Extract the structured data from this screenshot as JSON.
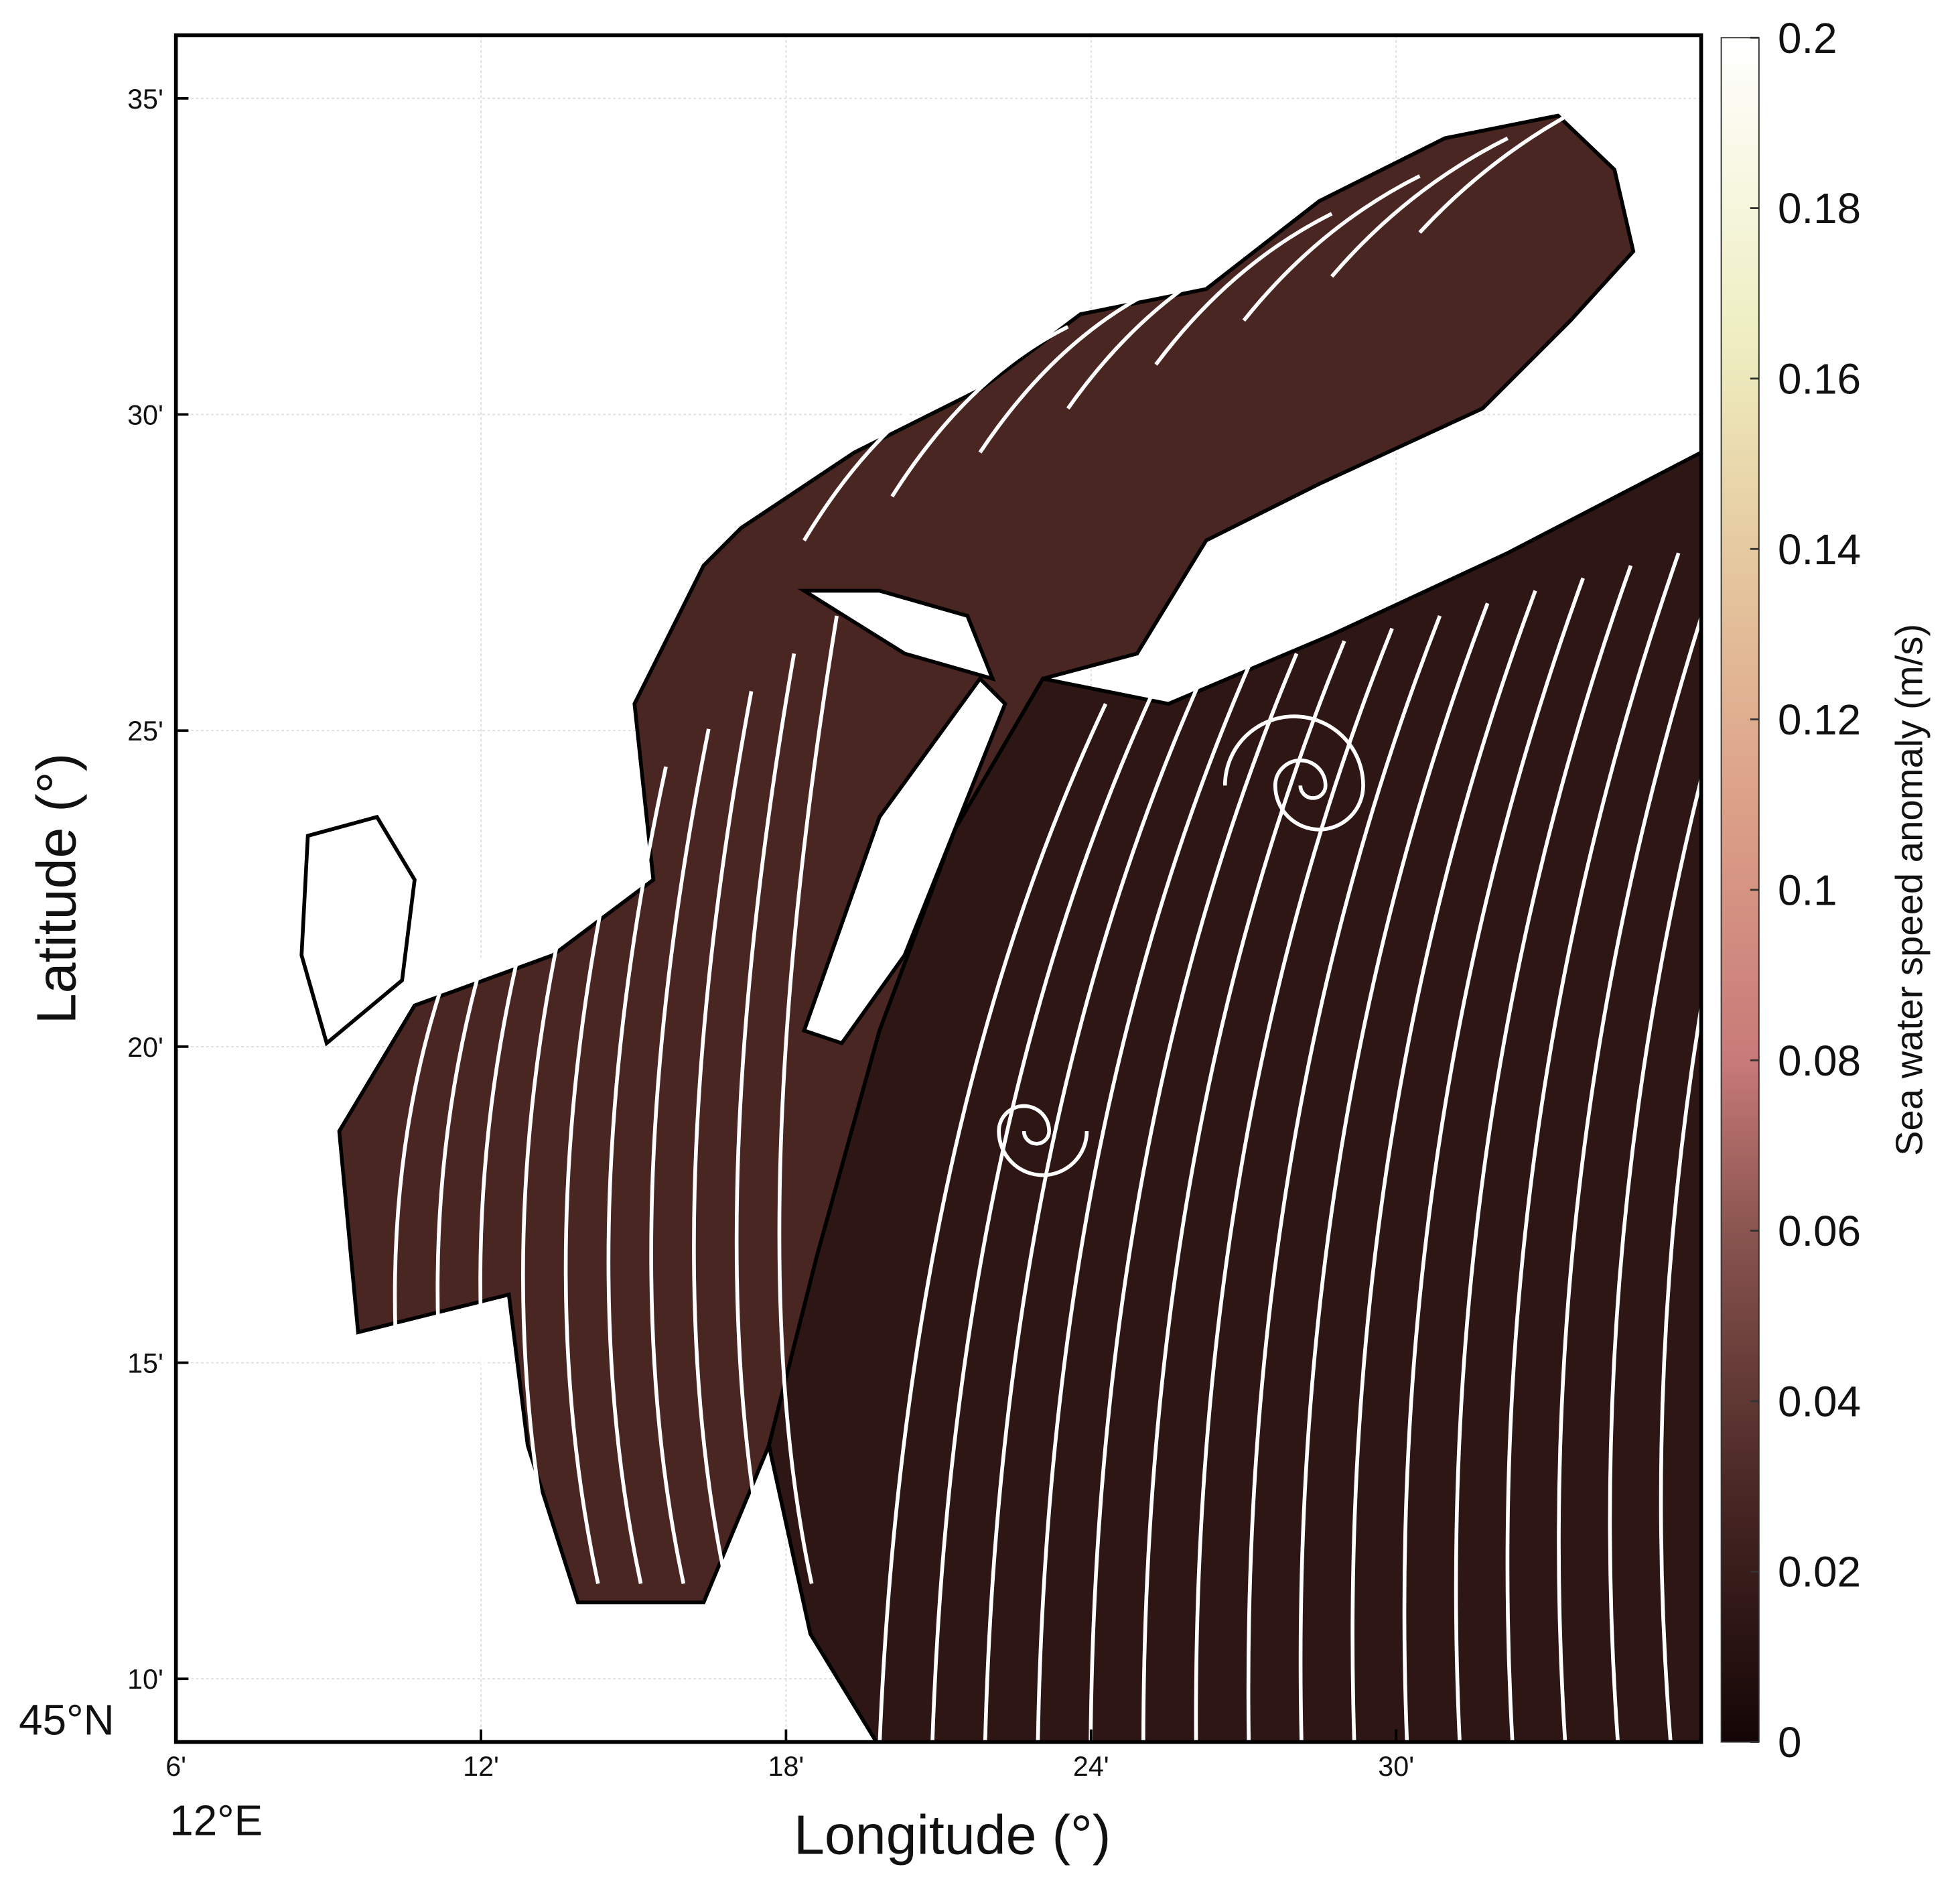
{
  "map": {
    "xlabel": "Longitude (°)",
    "ylabel": "Latitude (°)",
    "xlim": [
      6,
      36
    ],
    "xticks": [
      {
        "value": 6,
        "label": "6'"
      },
      {
        "value": 12,
        "label": "12'"
      },
      {
        "value": 18,
        "label": "18'"
      },
      {
        "value": 24,
        "label": "24'"
      },
      {
        "value": 30,
        "label": "30'"
      }
    ],
    "x_origin_label": "12°E",
    "ylim": [
      9,
      36
    ],
    "yticks": [
      {
        "value": 10,
        "label": "10'"
      },
      {
        "value": 15,
        "label": "15'"
      },
      {
        "value": 20,
        "label": "20'"
      },
      {
        "value": 25,
        "label": "25'"
      },
      {
        "value": 30,
        "label": "30'"
      },
      {
        "value": 35,
        "label": "35'"
      }
    ],
    "y_origin_label": "45°N",
    "grid": true
  },
  "colorbar": {
    "label": "Sea water speed anomaly (m/s)",
    "lim": [
      0,
      0.2
    ],
    "ticks": [
      0,
      0.02,
      0.04,
      0.06,
      0.08,
      0.1,
      0.12,
      0.14,
      0.16,
      0.18,
      0.2
    ]
  }
}
